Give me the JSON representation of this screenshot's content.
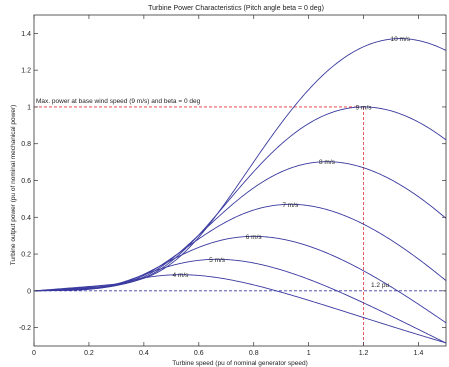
{
  "chart_data": {
    "type": "line",
    "title": "Turbine Power Characteristics (Pitch angle beta = 0 deg)",
    "xlabel": "Turbine speed (pu of nominal generator speed)",
    "ylabel": "Turbine output power (pu of nominal mechanical power)",
    "xlim": [
      0,
      1.5
    ],
    "ylim": [
      -0.3,
      1.5
    ],
    "x_ticks": [
      "0",
      "0.2",
      "0.4",
      "0.6",
      "0.8",
      "1",
      "1.2",
      "1.4"
    ],
    "y_ticks": [
      "-0.2",
      "0",
      "0.2",
      "0.4",
      "0.6",
      "0.8",
      "1",
      "1.2",
      "1.4"
    ],
    "grid": false,
    "curve_color": "#3a3aa0",
    "series": [
      {
        "name": "4 m/s",
        "label": "4 m/s",
        "ws": 4
      },
      {
        "name": "5 m/s",
        "label": "5 m/s",
        "ws": 5
      },
      {
        "name": "6 m/s",
        "label": "6 m/s",
        "ws": 6
      },
      {
        "name": "7 m/s",
        "label": "7 m/s",
        "ws": 7
      },
      {
        "name": "8 m/s",
        "label": "8 m/s",
        "ws": 8
      },
      {
        "name": "9 m/s",
        "label": "9 m/s",
        "ws": 9
      },
      {
        "name": "10 m/s",
        "label": "10 m/s",
        "ws": 10
      }
    ],
    "annotations": {
      "max_power_text": "Max. power at base wind speed (9 m/s) and beta = 0 deg",
      "max_power_value": 1,
      "speed_marker_text": "1.2 pu",
      "speed_marker_value": 1.2,
      "reference_line_color": "#e0303a",
      "zero_line_color": "#3a3aa0"
    }
  }
}
